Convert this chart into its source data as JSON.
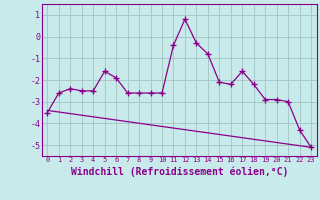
{
  "background_color": "#c8eaea",
  "grid_color": "#a8c8c8",
  "line_color": "#8b008b",
  "xlabel": "Windchill (Refroidissement éolien,°C)",
  "xlim": [
    -0.5,
    23.5
  ],
  "ylim": [
    -5.5,
    1.5
  ],
  "yticks": [
    1,
    0,
    -1,
    -2,
    -3,
    -4,
    -5
  ],
  "xticks": [
    0,
    1,
    2,
    3,
    4,
    5,
    6,
    7,
    8,
    9,
    10,
    11,
    12,
    13,
    14,
    15,
    16,
    17,
    18,
    19,
    20,
    21,
    22,
    23
  ],
  "series1_x": [
    0,
    1,
    2,
    3,
    4,
    5,
    6,
    7,
    8,
    9,
    10,
    11,
    12,
    13,
    14,
    15,
    16,
    17,
    18,
    19,
    20,
    21,
    22,
    23
  ],
  "series1_y": [
    -3.5,
    -2.6,
    -2.4,
    -2.5,
    -2.5,
    -1.6,
    -1.9,
    -2.6,
    -2.6,
    -2.6,
    -2.6,
    -0.4,
    0.8,
    -0.3,
    -0.8,
    -2.1,
    -2.2,
    -1.6,
    -2.2,
    -2.9,
    -2.9,
    -3.0,
    -4.3,
    -5.1
  ],
  "series2_x": [
    0,
    23
  ],
  "series2_y": [
    -3.4,
    -5.1
  ]
}
